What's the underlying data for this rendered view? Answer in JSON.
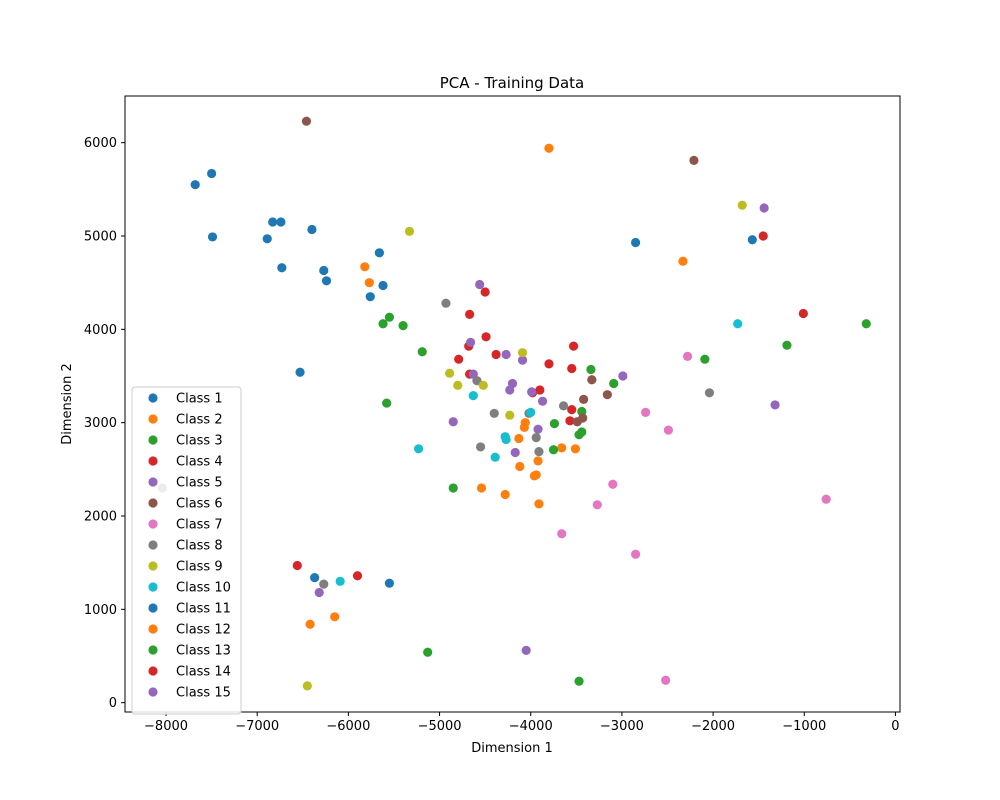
{
  "chart_data": {
    "type": "scatter",
    "title": "PCA - Training Data",
    "xlabel": "Dimension 1",
    "ylabel": "Dimension 2",
    "xlim": [
      -8450,
      50
    ],
    "ylim": [
      -100,
      6500
    ],
    "xticks": [
      -8000,
      -7000,
      -6000,
      -5000,
      -4000,
      -3000,
      -2000,
      -1000,
      0
    ],
    "yticks": [
      0,
      1000,
      2000,
      3000,
      4000,
      5000,
      6000
    ],
    "xtick_labels": [
      "−8000",
      "−7000",
      "−6000",
      "−5000",
      "−4000",
      "−3000",
      "−2000",
      "−1000",
      "0"
    ],
    "ytick_labels": [
      "0",
      "1000",
      "2000",
      "3000",
      "4000",
      "5000",
      "6000"
    ],
    "grid": false,
    "legend_position": "lower-left",
    "series": [
      {
        "name": "Class 1",
        "color": "#1f77b4",
        "points": [
          [
            -7680,
            5550
          ],
          [
            -7500,
            5670
          ],
          [
            -7490,
            4990
          ],
          [
            -6890,
            4970
          ],
          [
            -6830,
            5150
          ],
          [
            -6740,
            5150
          ],
          [
            -6730,
            4660
          ],
          [
            -6400,
            5070
          ],
          [
            -6270,
            4630
          ],
          [
            -6240,
            4520
          ],
          [
            -5760,
            4350
          ],
          [
            -5660,
            4820
          ],
          [
            -5620,
            4470
          ],
          [
            -6530,
            3540
          ],
          [
            -2850,
            4930
          ],
          [
            -1570,
            4960
          ]
        ]
      },
      {
        "name": "Class 2",
        "color": "#ff7f0e",
        "points": [
          [
            -3800,
            5940
          ],
          [
            -5820,
            4670
          ],
          [
            -5770,
            4500
          ],
          [
            -2330,
            4730
          ],
          [
            -4060,
            3000
          ],
          [
            -4070,
            2950
          ],
          [
            -4130,
            2830
          ],
          [
            -4120,
            2530
          ],
          [
            -3920,
            2590
          ],
          [
            -3940,
            2440
          ],
          [
            -3960,
            2430
          ],
          [
            -3910,
            2130
          ],
          [
            -4280,
            2230
          ],
          [
            -4540,
            2300
          ],
          [
            -3660,
            2730
          ],
          [
            -3510,
            2720
          ]
        ]
      },
      {
        "name": "Class 3",
        "color": "#2ca02c",
        "points": [
          [
            -5620,
            4060
          ],
          [
            -5550,
            4130
          ],
          [
            -5400,
            4040
          ],
          [
            -5190,
            3760
          ],
          [
            -5580,
            3210
          ],
          [
            -4850,
            2300
          ],
          [
            -3340,
            3570
          ],
          [
            -3440,
            3120
          ],
          [
            -3090,
            3420
          ],
          [
            -2090,
            3680
          ],
          [
            -1190,
            3830
          ],
          [
            -320,
            4060
          ],
          [
            -3740,
            2990
          ],
          [
            -3750,
            2710
          ],
          [
            -3470,
            2870
          ],
          [
            -3440,
            2900
          ]
        ]
      },
      {
        "name": "Class 4",
        "color": "#d62728",
        "points": [
          [
            -4670,
            4160
          ],
          [
            -4500,
            4400
          ],
          [
            -4490,
            3920
          ],
          [
            -4680,
            3820
          ],
          [
            -4790,
            3680
          ],
          [
            -4380,
            3730
          ],
          [
            -4670,
            3520
          ],
          [
            -3800,
            3630
          ],
          [
            -3530,
            3820
          ],
          [
            -3550,
            3580
          ],
          [
            -3900,
            3350
          ],
          [
            -3980,
            3320
          ],
          [
            -3550,
            3140
          ],
          [
            -3570,
            3020
          ],
          [
            -1450,
            5000
          ],
          [
            -1010,
            4170
          ]
        ]
      },
      {
        "name": "Class 5",
        "color": "#9467bd",
        "points": [
          [
            -4560,
            4480
          ],
          [
            -4660,
            3860
          ],
          [
            -4270,
            3730
          ],
          [
            -4090,
            3670
          ],
          [
            -4200,
            3420
          ],
          [
            -4230,
            3350
          ],
          [
            -3990,
            3330
          ],
          [
            -3870,
            3230
          ],
          [
            -3920,
            2930
          ],
          [
            -4170,
            2680
          ],
          [
            -2990,
            3500
          ],
          [
            -4850,
            3010
          ],
          [
            -4630,
            3520
          ],
          [
            -1440,
            5300
          ],
          [
            -1320,
            3190
          ],
          [
            -4050,
            560
          ]
        ]
      },
      {
        "name": "Class 6",
        "color": "#8c564b",
        "points": [
          [
            -6460,
            6230
          ],
          [
            -2210,
            5810
          ],
          [
            -3330,
            3460
          ],
          [
            -3420,
            3250
          ],
          [
            -3160,
            3300
          ],
          [
            -3490,
            3010
          ],
          [
            -3430,
            3050
          ]
        ]
      },
      {
        "name": "Class 7",
        "color": "#e377c2",
        "points": [
          [
            -2280,
            3710
          ],
          [
            -2740,
            3110
          ],
          [
            -2490,
            2920
          ],
          [
            -3100,
            2340
          ],
          [
            -3270,
            2120
          ],
          [
            -3660,
            1810
          ],
          [
            -2850,
            1590
          ],
          [
            -760,
            2180
          ],
          [
            -2520,
            240
          ]
        ]
      },
      {
        "name": "Class 8",
        "color": "#7f7f7f",
        "points": [
          [
            -4930,
            4280
          ],
          [
            -4590,
            3450
          ],
          [
            -4400,
            3100
          ],
          [
            -3640,
            3180
          ],
          [
            -4020,
            3100
          ],
          [
            -3940,
            2840
          ],
          [
            -3910,
            2690
          ],
          [
            -4550,
            2740
          ],
          [
            -2040,
            3320
          ],
          [
            -8040,
            2300
          ],
          [
            -6270,
            1270
          ]
        ]
      },
      {
        "name": "Class 9",
        "color": "#bcbd22",
        "points": [
          [
            -5330,
            5050
          ],
          [
            -1680,
            5330
          ],
          [
            -4890,
            3530
          ],
          [
            -4800,
            3400
          ],
          [
            -4520,
            3400
          ],
          [
            -4090,
            3750
          ],
          [
            -4230,
            3080
          ],
          [
            -6450,
            180
          ]
        ]
      },
      {
        "name": "Class 10",
        "color": "#17becf",
        "points": [
          [
            -4630,
            3290
          ],
          [
            -4000,
            3110
          ],
          [
            -4280,
            2850
          ],
          [
            -4270,
            2820
          ],
          [
            -4390,
            2630
          ],
          [
            -5230,
            2720
          ],
          [
            -6090,
            1300
          ],
          [
            -1730,
            4060
          ]
        ]
      },
      {
        "name": "Class 11",
        "color": "#1f77b4",
        "points": [
          [
            -6370,
            1340
          ],
          [
            -5550,
            1280
          ]
        ]
      },
      {
        "name": "Class 12",
        "color": "#ff7f0e",
        "points": [
          [
            -6150,
            920
          ],
          [
            -6420,
            840
          ]
        ]
      },
      {
        "name": "Class 13",
        "color": "#2ca02c",
        "points": [
          [
            -5130,
            540
          ],
          [
            -3470,
            230
          ]
        ]
      },
      {
        "name": "Class 14",
        "color": "#d62728",
        "points": [
          [
            -6560,
            1470
          ],
          [
            -5900,
            1360
          ]
        ]
      },
      {
        "name": "Class 15",
        "color": "#9467bd",
        "points": [
          [
            -6320,
            1180
          ]
        ]
      }
    ]
  }
}
